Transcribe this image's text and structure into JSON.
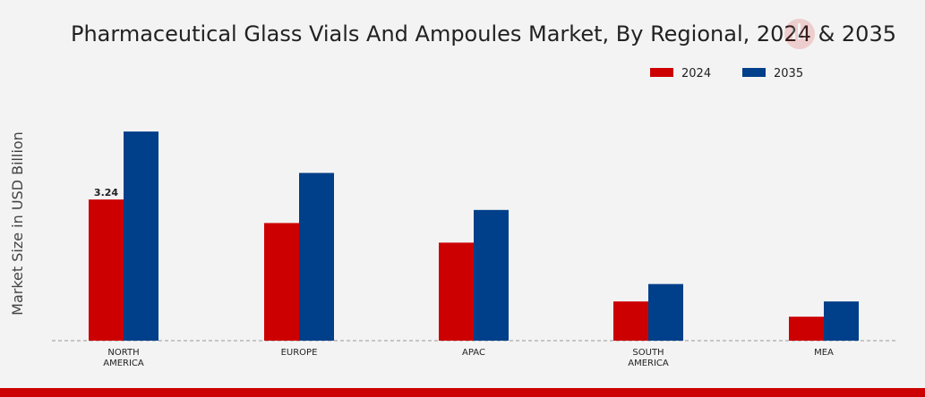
{
  "chart_data": {
    "type": "bar",
    "title": "Pharmaceutical Glass Vials And Ampoules Market, By Regional, 2024 & 2035",
    "ylabel": "Market Size in USD Billion",
    "xlabel": "",
    "categories": [
      [
        "NORTH",
        "AMERICA"
      ],
      [
        "EUROPE"
      ],
      [
        "APAC"
      ],
      [
        "SOUTH",
        "AMERICA"
      ],
      [
        "MEA"
      ]
    ],
    "series": [
      {
        "name": "2024",
        "color": "#cc0000",
        "values": [
          3.24,
          2.7,
          2.25,
          0.9,
          0.55
        ]
      },
      {
        "name": "2035",
        "color": "#003f8a",
        "values": [
          4.8,
          3.85,
          3.0,
          1.3,
          0.9
        ]
      }
    ],
    "data_labels": [
      {
        "series": 0,
        "index": 0,
        "text": "3.24"
      }
    ],
    "ylim": [
      0,
      5.5
    ],
    "legend_position": "top-right",
    "grid": false
  },
  "footer": {
    "color": "#cc0000"
  }
}
